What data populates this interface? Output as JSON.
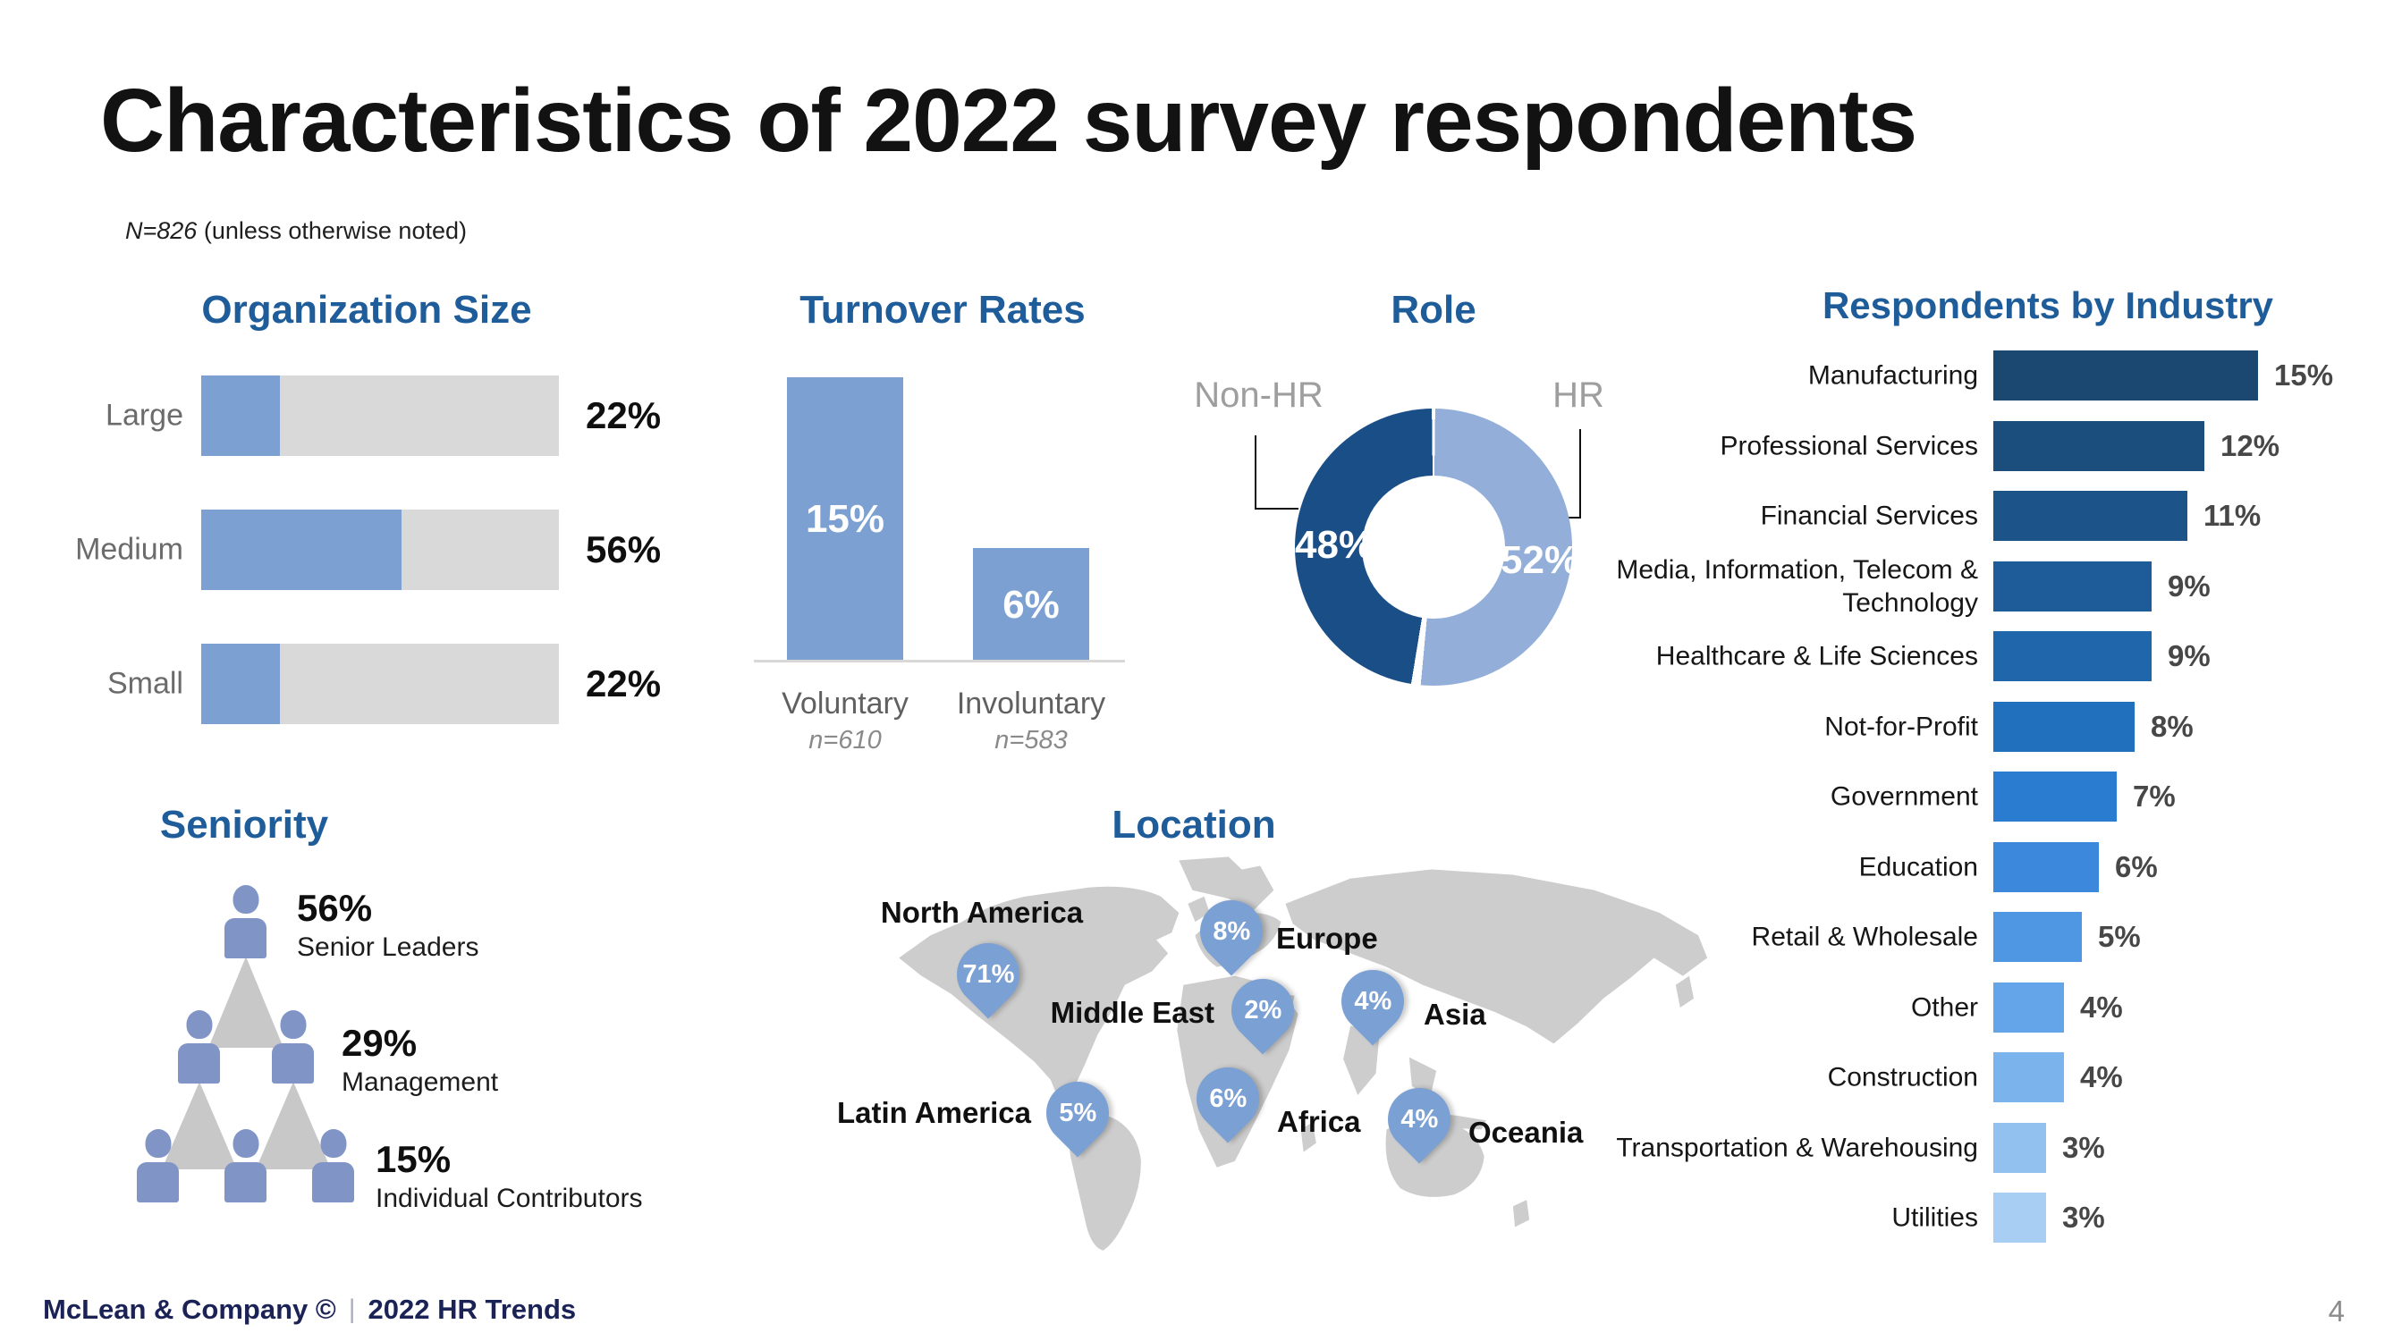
{
  "slide": {
    "title": "Characteristics of 2022 survey respondents",
    "note": {
      "n": "N=826",
      "rest": " (unless otherwise noted)"
    },
    "footer": {
      "brand": "McLean & Company ©",
      "divider": "|",
      "product": "2022 HR Trends",
      "page": "4"
    }
  },
  "colors": {
    "section_title": "#1E5C9A",
    "bar_blue": "#7CA0D1",
    "track_gray": "#D9D9D9",
    "donut_dark": "#1A4E87",
    "donut_light": "#93AFD9",
    "map_gray": "#CDCDCD",
    "pin_blue": "#7BA0D3",
    "person_blue": "#8095C5",
    "triangle_gray": "#C8C8C8",
    "footer_navy": "#1B2256",
    "industry_colors": [
      "#1B4870",
      "#1C4E7D",
      "#1C548A",
      "#1E5C99",
      "#1F66AB",
      "#2170BE",
      "#2A7CD0",
      "#3B88DC",
      "#5097E3",
      "#64A4E8",
      "#7BB3EC",
      "#92C1F0",
      "#A9CEF3"
    ]
  },
  "chart_data": [
    {
      "id": "organization_size",
      "type": "bar",
      "orientation": "horizontal",
      "title": "Organization Size",
      "categories": [
        "Large",
        "Medium",
        "Small"
      ],
      "values": [
        22,
        56,
        22
      ],
      "labels": [
        "22%",
        "56%",
        "22%"
      ],
      "xlim": [
        0,
        100
      ],
      "grid": false,
      "style": "blue fill on full-width gray track"
    },
    {
      "id": "turnover_rates",
      "type": "bar",
      "orientation": "vertical",
      "title": "Turnover Rates",
      "categories": [
        "Voluntary",
        "Involuntary"
      ],
      "sublabels": [
        "n=610",
        "n=583"
      ],
      "values": [
        15,
        6
      ],
      "labels": [
        "15%",
        "6%"
      ],
      "value_label_position": "inside-white"
    },
    {
      "id": "role",
      "type": "pie",
      "donut": true,
      "title": "Role",
      "categories": [
        "Non-HR",
        "HR"
      ],
      "values": [
        48,
        52
      ],
      "labels": [
        "48%",
        "52%"
      ],
      "start": "HR slice clockwise from 12 o'clock"
    },
    {
      "id": "seniority",
      "type": "pyramid",
      "title": "Seniority",
      "categories": [
        "Senior Leaders",
        "Management",
        "Individual Contributors"
      ],
      "values": [
        56,
        29,
        15
      ],
      "labels": [
        "56%",
        "29%",
        "15%"
      ]
    },
    {
      "id": "location",
      "type": "map",
      "title": "Location",
      "categories": [
        "North America",
        "Europe",
        "Middle East",
        "Asia",
        "Latin America",
        "Africa",
        "Oceania"
      ],
      "values": [
        71,
        8,
        2,
        4,
        5,
        6,
        4
      ],
      "labels": [
        "71%",
        "8%",
        "2%",
        "4%",
        "5%",
        "6%",
        "4%"
      ]
    },
    {
      "id": "respondents_by_industry",
      "type": "bar",
      "orientation": "horizontal",
      "title": "Respondents by Industry",
      "categories": [
        "Manufacturing",
        "Professional Services",
        "Financial Services",
        "Media, Information, Telecom & Technology",
        "Healthcare & Life Sciences",
        "Not-for-Profit",
        "Government",
        "Education",
        "Retail & Wholesale",
        "Other",
        "Construction",
        "Transportation & Warehousing",
        "Utilities"
      ],
      "values": [
        15,
        12,
        11,
        9,
        9,
        8,
        7,
        6,
        5,
        4,
        4,
        3,
        3
      ],
      "labels": [
        "15%",
        "12%",
        "11%",
        "9%",
        "9%",
        "8%",
        "7%",
        "6%",
        "5%",
        "4%",
        "4%",
        "3%",
        "3%"
      ],
      "palette": "dark navy to light blue gradient"
    }
  ]
}
